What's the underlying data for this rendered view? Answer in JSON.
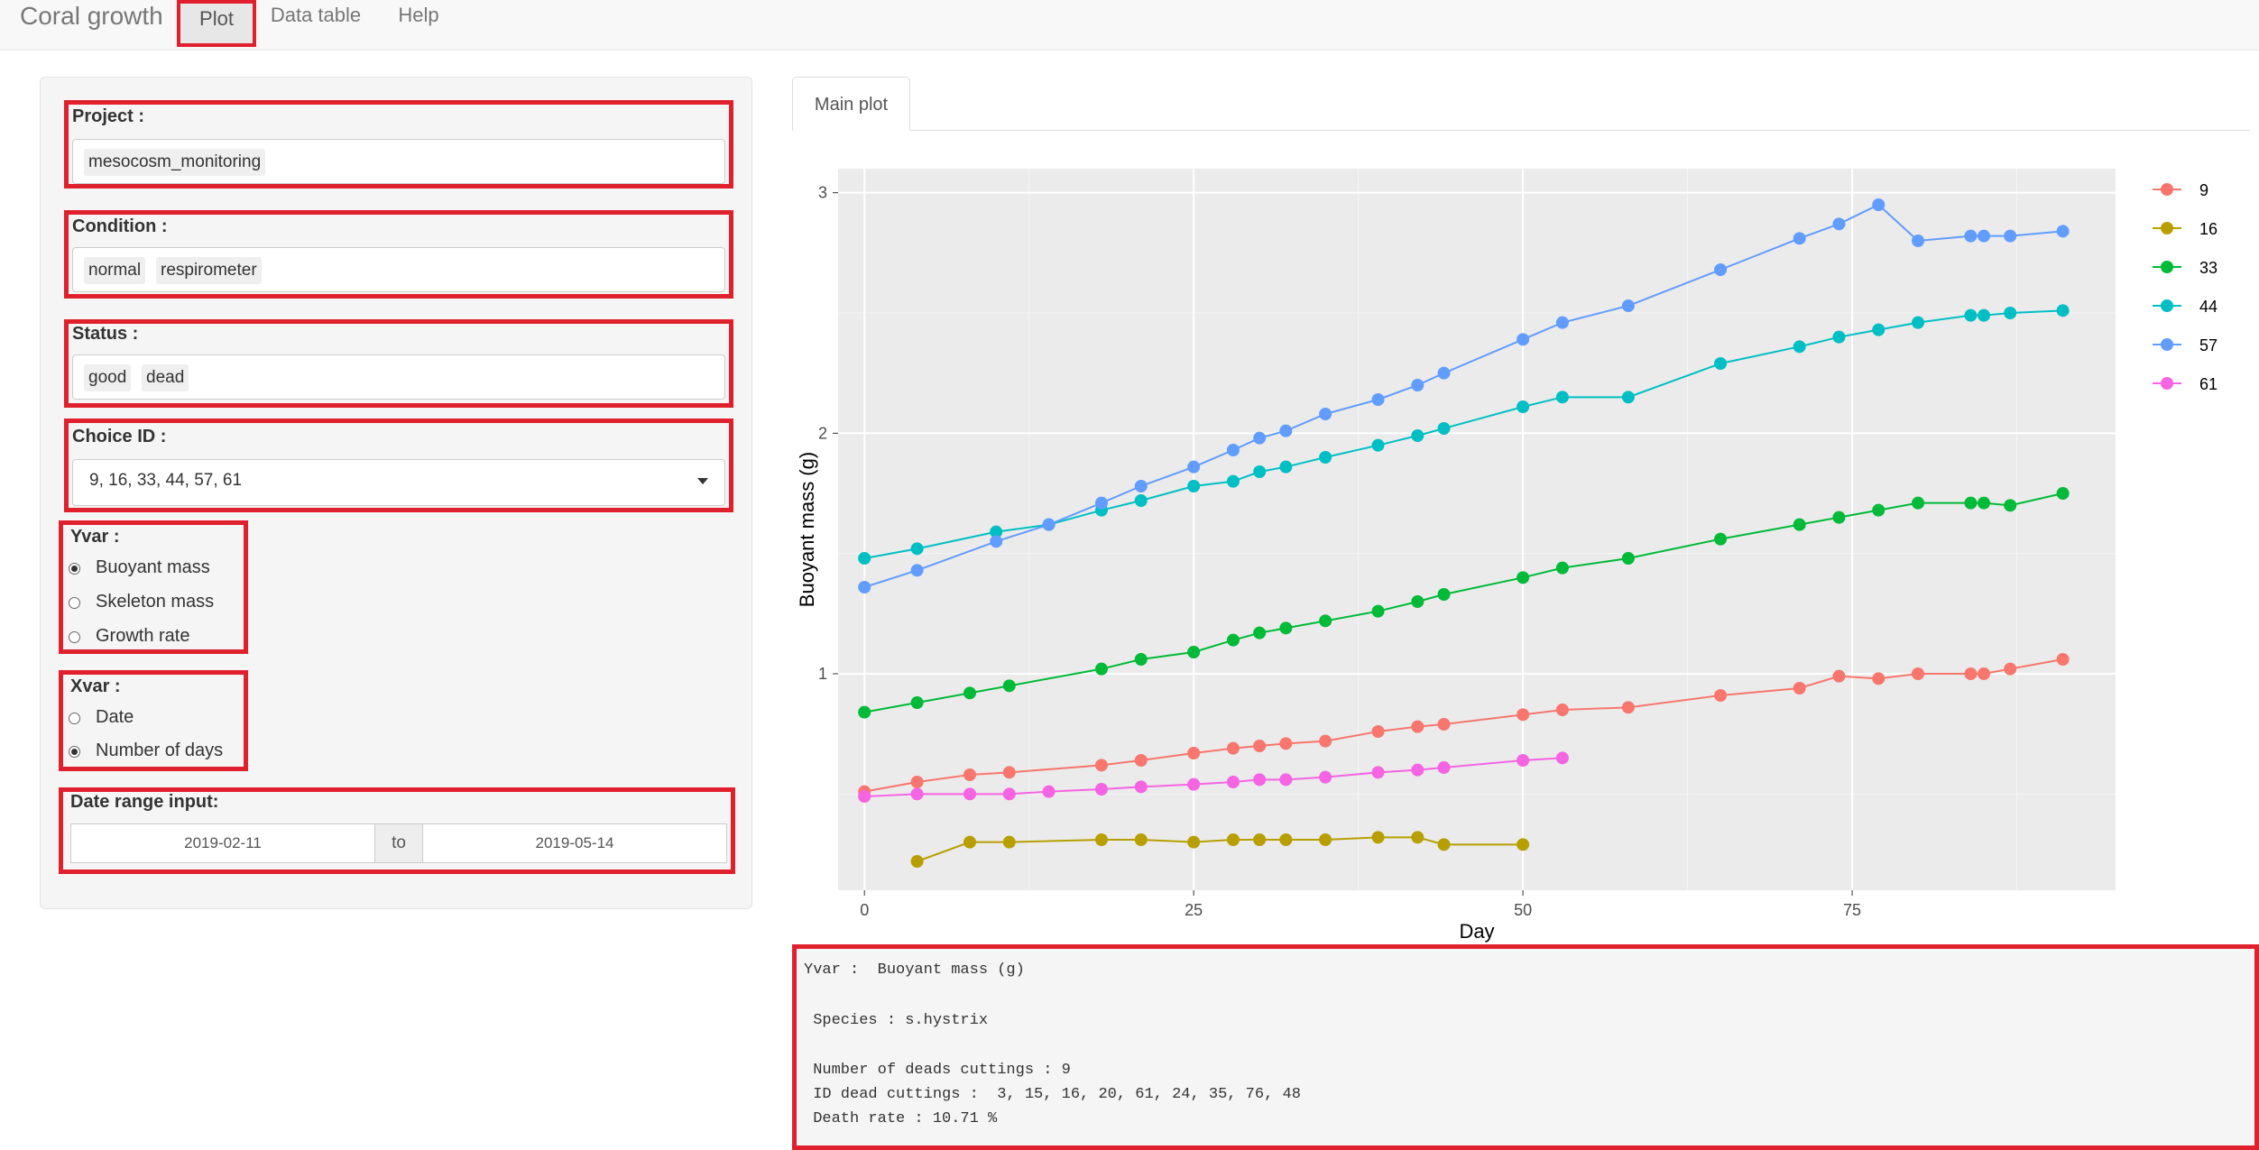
{
  "navbar": {
    "brand": "Coral growth",
    "tabs": [
      {
        "label": "Plot"
      },
      {
        "label": "Data table"
      },
      {
        "label": "Help"
      }
    ]
  },
  "sidebar": {
    "project": {
      "label": "Project :",
      "tags": [
        "mesocosm_monitoring"
      ]
    },
    "condition": {
      "label": "Condition :",
      "tags": [
        "normal",
        "respirometer"
      ]
    },
    "status": {
      "label": "Status :",
      "tags": [
        "good",
        "dead"
      ]
    },
    "choice_id": {
      "label": "Choice ID :",
      "value": "9, 16, 33, 44, 57, 61"
    },
    "yvar": {
      "label": "Yvar :",
      "options": [
        "Buoyant mass",
        "Skeleton mass",
        "Growth rate"
      ],
      "selected": "Buoyant mass"
    },
    "xvar": {
      "label": "Xvar :",
      "options": [
        "Date",
        "Number of days"
      ],
      "selected": "Number of days"
    },
    "date_range": {
      "label": "Date range input:",
      "start": "2019-02-11",
      "separator": "to",
      "end": "2019-05-14"
    }
  },
  "main": {
    "tab": "Main plot"
  },
  "chart_data": {
    "type": "line",
    "title": "",
    "xlabel": "Day",
    "ylabel": "Buoyant mass (g)",
    "xlim": [
      -2,
      95
    ],
    "ylim": [
      0.1,
      3.1
    ],
    "xticks": [
      0,
      25,
      50,
      75
    ],
    "yticks": [
      1,
      2,
      3
    ],
    "grid": true,
    "legend_position": "right",
    "series": [
      {
        "name": "9",
        "color": "#F8766D",
        "x": [
          0,
          4,
          8,
          11,
          18,
          21,
          25,
          28,
          30,
          32,
          35,
          39,
          42,
          44,
          50,
          53,
          58,
          65,
          71,
          74,
          77,
          80,
          84,
          85,
          87,
          91
        ],
        "y": [
          0.51,
          0.55,
          0.58,
          0.59,
          0.62,
          0.64,
          0.67,
          0.69,
          0.7,
          0.71,
          0.72,
          0.76,
          0.78,
          0.79,
          0.83,
          0.85,
          0.86,
          0.91,
          0.94,
          0.99,
          0.98,
          1.0,
          1.0,
          1.0,
          1.02,
          1.06
        ]
      },
      {
        "name": "16",
        "color": "#B79F00",
        "x": [
          4,
          8,
          11,
          18,
          21,
          25,
          28,
          30,
          32,
          35,
          39,
          42,
          44,
          50
        ],
        "y": [
          0.22,
          0.3,
          0.3,
          0.31,
          0.31,
          0.3,
          0.31,
          0.31,
          0.31,
          0.31,
          0.32,
          0.32,
          0.29,
          0.29
        ]
      },
      {
        "name": "33",
        "color": "#00BA38",
        "x": [
          0,
          4,
          8,
          11,
          18,
          21,
          25,
          28,
          30,
          32,
          35,
          39,
          42,
          44,
          50,
          53,
          58,
          65,
          71,
          74,
          77,
          80,
          84,
          85,
          87,
          91
        ],
        "y": [
          0.84,
          0.88,
          0.92,
          0.95,
          1.02,
          1.06,
          1.09,
          1.14,
          1.17,
          1.19,
          1.22,
          1.26,
          1.3,
          1.33,
          1.4,
          1.44,
          1.48,
          1.56,
          1.62,
          1.65,
          1.68,
          1.71,
          1.71,
          1.71,
          1.7,
          1.75
        ]
      },
      {
        "name": "44",
        "color": "#00BFC4",
        "x": [
          0,
          4,
          10,
          14,
          18,
          21,
          25,
          28,
          30,
          32,
          35,
          39,
          42,
          44,
          50,
          53,
          58,
          65,
          71,
          74,
          77,
          80,
          84,
          85,
          87,
          91
        ],
        "y": [
          1.48,
          1.52,
          1.59,
          1.62,
          1.68,
          1.72,
          1.78,
          1.8,
          1.84,
          1.86,
          1.9,
          1.95,
          1.99,
          2.02,
          2.11,
          2.15,
          2.15,
          2.29,
          2.36,
          2.4,
          2.43,
          2.46,
          2.49,
          2.49,
          2.5,
          2.51
        ]
      },
      {
        "name": "57",
        "color": "#619CFF",
        "x": [
          0,
          4,
          10,
          14,
          18,
          21,
          25,
          28,
          30,
          32,
          35,
          39,
          42,
          44,
          50,
          53,
          58,
          65,
          71,
          74,
          77,
          80,
          84,
          85,
          87,
          91
        ],
        "y": [
          1.36,
          1.43,
          1.55,
          1.62,
          1.71,
          1.78,
          1.86,
          1.93,
          1.98,
          2.01,
          2.08,
          2.14,
          2.2,
          2.25,
          2.39,
          2.46,
          2.53,
          2.68,
          2.81,
          2.87,
          2.95,
          2.8,
          2.82,
          2.82,
          2.82,
          2.84
        ]
      },
      {
        "name": "61",
        "color": "#F564E3",
        "x": [
          0,
          4,
          8,
          11,
          14,
          18,
          21,
          25,
          28,
          30,
          32,
          35,
          39,
          42,
          44,
          50,
          53
        ],
        "y": [
          0.49,
          0.5,
          0.5,
          0.5,
          0.51,
          0.52,
          0.53,
          0.54,
          0.55,
          0.56,
          0.56,
          0.57,
          0.59,
          0.6,
          0.61,
          0.64,
          0.65
        ]
      }
    ]
  },
  "output": {
    "lines": [
      "Yvar :  Buoyant mass (g)",
      " Species : s.hystrix",
      " Number of deads cuttings : 9",
      " ID dead cuttings :  3, 15, 16, 20, 61, 24, 35, 76, 48",
      " Death rate : 10.71 %"
    ]
  },
  "colors": {
    "highlight": "#e0202c",
    "panel_bg": "#ebebeb"
  }
}
